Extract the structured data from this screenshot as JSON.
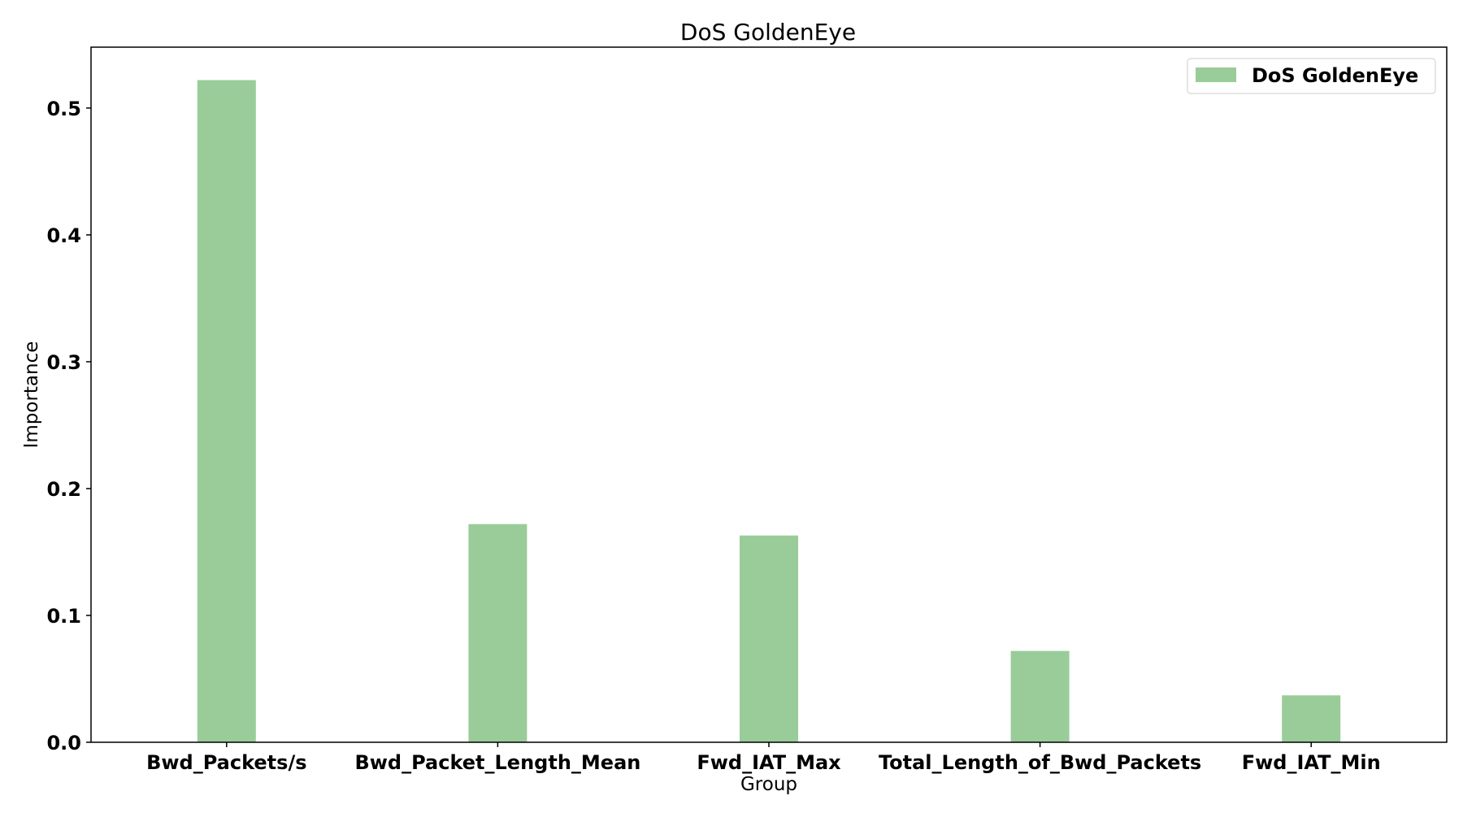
{
  "chart_data": {
    "type": "bar",
    "title": "DoS GoldenEye",
    "xlabel": "Group",
    "ylabel": "Importance",
    "categories": [
      "Bwd_Packets/s",
      "Bwd_Packet_Length_Mean",
      "Fwd_IAT_Max",
      "Total_Length_of_Bwd_Packets",
      "Fwd_IAT_Min"
    ],
    "series": [
      {
        "name": "DoS GoldenEye",
        "values": [
          0.522,
          0.172,
          0.163,
          0.072,
          0.037
        ],
        "color": "#99cc99"
      }
    ],
    "ylim": [
      0,
      0.548
    ],
    "yticks": [
      "0.0",
      "0.1",
      "0.2",
      "0.3",
      "0.4",
      "0.5"
    ],
    "grid": false,
    "legend_position": "top-right"
  }
}
